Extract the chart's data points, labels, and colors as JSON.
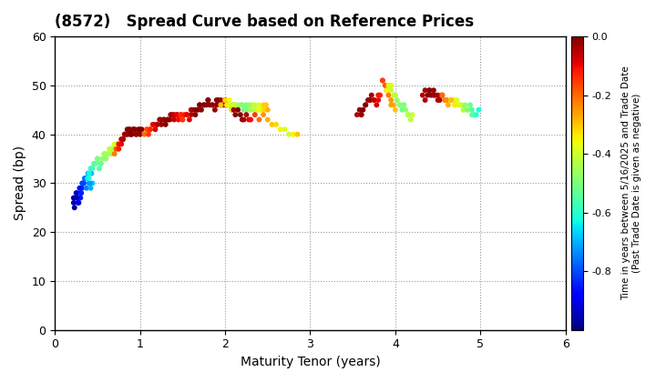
{
  "title": "(8572)   Spread Curve based on Reference Prices",
  "xlabel": "Maturity Tenor (years)",
  "ylabel": "Spread (bp)",
  "colorbar_label": "Time in years between 5/16/2025 and Trade Date\n(Past Trade Date is given as negative)",
  "xlim": [
    0,
    6
  ],
  "ylim": [
    0,
    60
  ],
  "xticks": [
    0,
    1,
    2,
    3,
    4,
    5,
    6
  ],
  "yticks": [
    0,
    10,
    20,
    30,
    40,
    50,
    60
  ],
  "cmap": "jet",
  "clim": [
    -1.0,
    0.0
  ],
  "cticks": [
    0.0,
    -0.2,
    -0.4,
    -0.6,
    -0.8
  ],
  "background": "#ffffff",
  "grid_color": "#999999",
  "point_size": 18,
  "figsize": [
    7.2,
    4.2
  ],
  "dpi": 100,
  "clusters": [
    {
      "x": [
        0.22,
        0.24,
        0.26,
        0.28,
        0.3,
        0.32,
        0.34,
        0.22,
        0.25,
        0.27,
        0.3,
        0.33,
        0.35,
        0.37,
        0.4,
        0.42,
        0.44,
        0.23,
        0.26,
        0.29,
        0.31,
        0.38,
        0.41,
        0.43,
        0.32,
        0.36,
        0.39
      ],
      "y": [
        26,
        27,
        28,
        26,
        27,
        29,
        30,
        27,
        28,
        26,
        28,
        30,
        31,
        29,
        30,
        29,
        30,
        25,
        27,
        29,
        28,
        31,
        30,
        32,
        30,
        31,
        32
      ],
      "c": [
        -0.95,
        -0.92,
        -0.9,
        -0.88,
        -0.85,
        -0.83,
        -0.8,
        -0.97,
        -0.93,
        -0.91,
        -0.87,
        -0.82,
        -0.78,
        -0.75,
        -0.72,
        -0.7,
        -0.68,
        -0.98,
        -0.94,
        -0.86,
        -0.84,
        -0.76,
        -0.73,
        -0.69,
        -0.81,
        -0.77,
        -0.74
      ]
    },
    {
      "x": [
        0.38,
        0.4,
        0.42,
        0.44,
        0.46,
        0.48,
        0.5,
        0.52,
        0.54,
        0.56,
        0.58,
        0.6,
        0.62,
        0.64,
        0.66,
        0.68,
        0.7,
        0.72,
        0.74,
        0.4,
        0.43,
        0.46,
        0.5,
        0.54,
        0.58,
        0.62,
        0.66,
        0.7
      ],
      "y": [
        31,
        32,
        33,
        33,
        34,
        34,
        35,
        33,
        34,
        35,
        36,
        35,
        36,
        37,
        36,
        37,
        37,
        38,
        38,
        31,
        33,
        34,
        35,
        34,
        36,
        36,
        37,
        38
      ],
      "c": [
        -0.65,
        -0.63,
        -0.6,
        -0.58,
        -0.55,
        -0.53,
        -0.5,
        -0.55,
        -0.52,
        -0.48,
        -0.45,
        -0.48,
        -0.44,
        -0.42,
        -0.45,
        -0.42,
        -0.4,
        -0.38,
        -0.36,
        -0.62,
        -0.58,
        -0.54,
        -0.5,
        -0.52,
        -0.46,
        -0.44,
        -0.43,
        -0.39
      ]
    },
    {
      "x": [
        0.7,
        0.72,
        0.75,
        0.78,
        0.8,
        0.82,
        0.85,
        0.88,
        0.9,
        0.92,
        0.95,
        0.98,
        1.0,
        1.02,
        0.75,
        0.78,
        0.82,
        0.85,
        0.88,
        0.92,
        0.96,
        1.0,
        0.8,
        0.84,
        0.87,
        0.9,
        0.94
      ],
      "y": [
        36,
        37,
        37,
        38,
        39,
        40,
        40,
        41,
        40,
        41,
        40,
        41,
        40,
        41,
        38,
        39,
        40,
        41,
        40,
        41,
        40,
        41,
        39,
        40,
        41,
        40,
        41
      ],
      "c": [
        -0.22,
        -0.18,
        -0.12,
        -0.08,
        -0.05,
        -0.02,
        -0.01,
        -0.0,
        -0.0,
        -0.01,
        -0.02,
        -0.0,
        -0.0,
        -0.01,
        -0.1,
        -0.06,
        -0.03,
        -0.01,
        -0.0,
        -0.01,
        -0.02,
        -0.0,
        -0.04,
        -0.02,
        -0.01,
        -0.0,
        -0.01
      ]
    },
    {
      "x": [
        1.05,
        1.08,
        1.1,
        1.12,
        1.15,
        1.18,
        1.2,
        1.23,
        1.25,
        1.28,
        1.3,
        1.33,
        1.35,
        1.38,
        1.4,
        1.43,
        1.45,
        1.48,
        1.5,
        1.08,
        1.12,
        1.16,
        1.2,
        1.24,
        1.28,
        1.32,
        1.36,
        1.4,
        1.44,
        1.48
      ],
      "y": [
        40,
        41,
        40,
        41,
        42,
        41,
        42,
        43,
        42,
        43,
        42,
        43,
        43,
        44,
        43,
        44,
        43,
        44,
        43,
        41,
        41,
        42,
        42,
        43,
        43,
        43,
        44,
        44,
        44,
        44
      ],
      "c": [
        -0.2,
        -0.18,
        -0.15,
        -0.12,
        -0.1,
        -0.08,
        -0.06,
        -0.04,
        -0.02,
        -0.01,
        -0.0,
        -0.01,
        -0.02,
        -0.04,
        -0.06,
        -0.08,
        -0.1,
        -0.12,
        -0.15,
        -0.17,
        -0.13,
        -0.09,
        -0.05,
        -0.03,
        -0.02,
        -0.01,
        -0.03,
        -0.07,
        -0.09,
        -0.13
      ]
    },
    {
      "x": [
        1.5,
        1.52,
        1.55,
        1.58,
        1.6,
        1.62,
        1.65,
        1.68,
        1.7,
        1.72,
        1.75,
        1.78,
        1.8,
        1.82,
        1.85,
        1.88,
        1.9,
        1.92,
        1.95,
        1.98,
        2.0,
        2.02,
        2.05,
        2.08,
        2.1,
        1.55,
        1.6,
        1.65,
        1.7,
        1.75,
        1.8,
        1.85,
        1.9,
        1.95,
        2.0
      ],
      "y": [
        43,
        44,
        44,
        43,
        44,
        45,
        44,
        45,
        46,
        45,
        46,
        46,
        47,
        46,
        46,
        45,
        46,
        47,
        46,
        46,
        47,
        46,
        46,
        45,
        46,
        44,
        45,
        45,
        46,
        46,
        47,
        46,
        47,
        47,
        47
      ],
      "c": [
        -0.15,
        -0.12,
        -0.1,
        -0.08,
        -0.05,
        -0.03,
        -0.01,
        -0.0,
        -0.0,
        -0.01,
        -0.02,
        -0.0,
        -0.0,
        -0.01,
        -0.02,
        -0.03,
        -0.01,
        -0.0,
        -0.02,
        -0.04,
        -0.06,
        -0.08,
        -0.1,
        -0.12,
        -0.15,
        -0.09,
        -0.04,
        -0.01,
        -0.0,
        -0.01,
        -0.01,
        -0.02,
        -0.01,
        -0.03,
        -0.07
      ]
    },
    {
      "x": [
        1.95,
        2.0,
        2.02,
        2.05,
        2.08,
        2.1,
        2.12,
        2.15,
        2.18,
        2.2,
        2.22,
        2.25,
        2.28,
        2.3,
        2.32,
        2.35,
        2.38,
        2.4,
        2.42,
        2.45,
        2.48,
        2.5,
        2.05,
        2.1,
        2.15,
        2.2,
        2.25,
        2.3,
        2.35,
        2.4,
        2.45
      ],
      "y": [
        46,
        47,
        46,
        46,
        45,
        46,
        46,
        45,
        46,
        46,
        45,
        46,
        46,
        45,
        46,
        45,
        45,
        46,
        45,
        45,
        46,
        45,
        47,
        46,
        46,
        46,
        45,
        45,
        46,
        45,
        46
      ],
      "c": [
        -0.3,
        -0.32,
        -0.35,
        -0.38,
        -0.4,
        -0.42,
        -0.44,
        -0.46,
        -0.48,
        -0.5,
        -0.52,
        -0.5,
        -0.48,
        -0.46,
        -0.44,
        -0.42,
        -0.4,
        -0.38,
        -0.35,
        -0.32,
        -0.3,
        -0.28,
        -0.36,
        -0.41,
        -0.45,
        -0.49,
        -0.49,
        -0.45,
        -0.41,
        -0.37,
        -0.31
      ]
    },
    {
      "x": [
        2.1,
        2.12,
        2.15,
        2.18,
        2.2,
        2.22,
        2.25,
        2.28,
        2.3,
        2.35,
        2.4,
        2.45,
        2.5,
        2.55,
        2.6,
        2.65,
        2.7,
        2.75,
        2.8,
        2.85
      ],
      "y": [
        45,
        44,
        45,
        44,
        43,
        43,
        44,
        43,
        43,
        44,
        43,
        44,
        43,
        42,
        42,
        41,
        41,
        40,
        40,
        40
      ],
      "c": [
        -0.03,
        -0.01,
        -0.0,
        -0.01,
        -0.02,
        -0.03,
        -0.05,
        -0.08,
        -0.1,
        -0.15,
        -0.2,
        -0.25,
        -0.28,
        -0.3,
        -0.32,
        -0.35,
        -0.38,
        -0.4,
        -0.35,
        -0.3
      ]
    },
    {
      "x": [
        3.55,
        3.58,
        3.6,
        3.62,
        3.65,
        3.68,
        3.7,
        3.72,
        3.75,
        3.78,
        3.8,
        3.82,
        3.85,
        3.88,
        3.9,
        3.92,
        3.95,
        3.98,
        4.0,
        3.6,
        3.65,
        3.7,
        3.75,
        3.8,
        3.85,
        3.9,
        3.95
      ],
      "y": [
        44,
        45,
        44,
        45,
        46,
        47,
        47,
        48,
        47,
        46,
        47,
        48,
        51,
        50,
        49,
        48,
        47,
        46,
        45,
        44,
        46,
        47,
        47,
        48,
        51,
        49,
        46
      ],
      "c": [
        -0.05,
        -0.03,
        -0.01,
        -0.0,
        -0.0,
        -0.01,
        -0.02,
        -0.03,
        -0.05,
        -0.08,
        -0.1,
        -0.12,
        -0.15,
        -0.18,
        -0.2,
        -0.22,
        -0.25,
        -0.28,
        -0.3,
        -0.02,
        -0.01,
        -0.03,
        -0.06,
        -0.11,
        -0.16,
        -0.21,
        -0.26
      ]
    },
    {
      "x": [
        3.9,
        3.92,
        3.95,
        3.98,
        4.0,
        4.02,
        4.05,
        4.08,
        4.1,
        4.12,
        4.15,
        4.18,
        4.2,
        3.95,
        4.0,
        4.05,
        4.1,
        4.15
      ],
      "y": [
        49,
        50,
        49,
        48,
        48,
        47,
        46,
        45,
        46,
        45,
        44,
        43,
        44,
        50,
        48,
        46,
        46,
        44
      ],
      "c": [
        -0.35,
        -0.38,
        -0.4,
        -0.42,
        -0.45,
        -0.48,
        -0.5,
        -0.52,
        -0.5,
        -0.48,
        -0.45,
        -0.42,
        -0.4,
        -0.38,
        -0.43,
        -0.49,
        -0.49,
        -0.44
      ]
    },
    {
      "x": [
        4.32,
        4.35,
        4.38,
        4.4,
        4.42,
        4.45,
        4.47,
        4.5,
        4.52,
        4.55,
        4.35,
        4.4,
        4.45,
        4.5
      ],
      "y": [
        48,
        49,
        48,
        49,
        48,
        49,
        48,
        48,
        47,
        48,
        47,
        49,
        48,
        47
      ],
      "c": [
        -0.05,
        -0.03,
        -0.01,
        -0.0,
        -0.01,
        -0.02,
        -0.03,
        -0.04,
        -0.02,
        -0.01,
        -0.04,
        -0.01,
        -0.03,
        -0.05
      ]
    },
    {
      "x": [
        4.55,
        4.58,
        4.6,
        4.62,
        4.65,
        4.68,
        4.7,
        4.72,
        4.75,
        4.78,
        4.8,
        4.82,
        4.85,
        4.88,
        4.9,
        4.92,
        4.95,
        4.98,
        4.6,
        4.65,
        4.7,
        4.75,
        4.8,
        4.85,
        4.9
      ],
      "y": [
        48,
        47,
        47,
        46,
        47,
        47,
        46,
        47,
        46,
        46,
        45,
        46,
        45,
        46,
        45,
        44,
        44,
        45,
        47,
        47,
        46,
        46,
        45,
        45,
        44
      ],
      "c": [
        -0.2,
        -0.22,
        -0.25,
        -0.28,
        -0.3,
        -0.32,
        -0.35,
        -0.38,
        -0.4,
        -0.42,
        -0.45,
        -0.48,
        -0.5,
        -0.52,
        -0.55,
        -0.58,
        -0.6,
        -0.62,
        -0.24,
        -0.29,
        -0.34,
        -0.39,
        -0.44,
        -0.49,
        -0.54
      ]
    }
  ]
}
